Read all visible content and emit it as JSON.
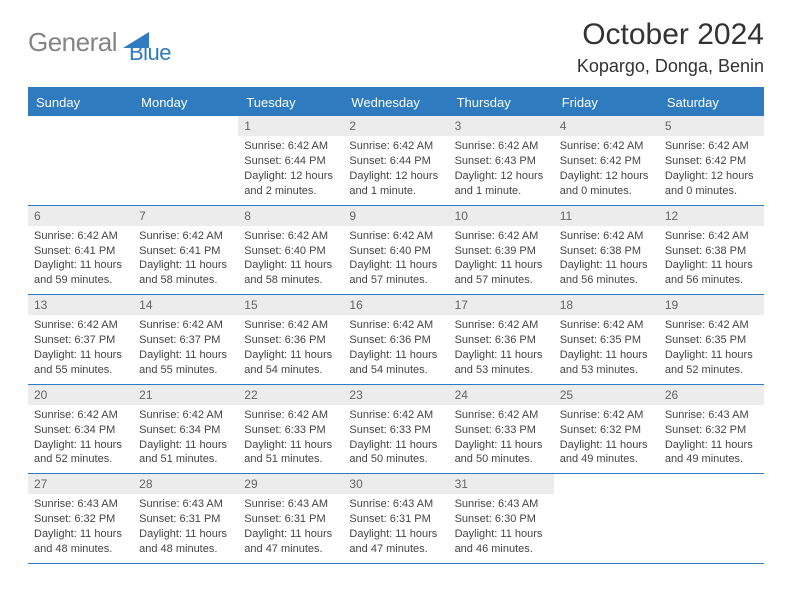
{
  "brand": {
    "text_gray": "General",
    "text_blue": "Blue",
    "shape_color": "#2f7bbf"
  },
  "title": "October 2024",
  "location": "Kopargo, Donga, Benin",
  "colors": {
    "header_bg": "#2f7bbf",
    "daynum_bg": "#ececec",
    "border": "#2f7bbf",
    "text": "#333333",
    "muted": "#666666"
  },
  "weekdays": [
    "Sunday",
    "Monday",
    "Tuesday",
    "Wednesday",
    "Thursday",
    "Friday",
    "Saturday"
  ],
  "weeks": [
    [
      {
        "empty": true
      },
      {
        "empty": true
      },
      {
        "num": "1",
        "sunrise": "Sunrise: 6:42 AM",
        "sunset": "Sunset: 6:44 PM",
        "daylight": "Daylight: 12 hours and 2 minutes."
      },
      {
        "num": "2",
        "sunrise": "Sunrise: 6:42 AM",
        "sunset": "Sunset: 6:44 PM",
        "daylight": "Daylight: 12 hours and 1 minute."
      },
      {
        "num": "3",
        "sunrise": "Sunrise: 6:42 AM",
        "sunset": "Sunset: 6:43 PM",
        "daylight": "Daylight: 12 hours and 1 minute."
      },
      {
        "num": "4",
        "sunrise": "Sunrise: 6:42 AM",
        "sunset": "Sunset: 6:42 PM",
        "daylight": "Daylight: 12 hours and 0 minutes."
      },
      {
        "num": "5",
        "sunrise": "Sunrise: 6:42 AM",
        "sunset": "Sunset: 6:42 PM",
        "daylight": "Daylight: 12 hours and 0 minutes."
      }
    ],
    [
      {
        "num": "6",
        "sunrise": "Sunrise: 6:42 AM",
        "sunset": "Sunset: 6:41 PM",
        "daylight": "Daylight: 11 hours and 59 minutes."
      },
      {
        "num": "7",
        "sunrise": "Sunrise: 6:42 AM",
        "sunset": "Sunset: 6:41 PM",
        "daylight": "Daylight: 11 hours and 58 minutes."
      },
      {
        "num": "8",
        "sunrise": "Sunrise: 6:42 AM",
        "sunset": "Sunset: 6:40 PM",
        "daylight": "Daylight: 11 hours and 58 minutes."
      },
      {
        "num": "9",
        "sunrise": "Sunrise: 6:42 AM",
        "sunset": "Sunset: 6:40 PM",
        "daylight": "Daylight: 11 hours and 57 minutes."
      },
      {
        "num": "10",
        "sunrise": "Sunrise: 6:42 AM",
        "sunset": "Sunset: 6:39 PM",
        "daylight": "Daylight: 11 hours and 57 minutes."
      },
      {
        "num": "11",
        "sunrise": "Sunrise: 6:42 AM",
        "sunset": "Sunset: 6:38 PM",
        "daylight": "Daylight: 11 hours and 56 minutes."
      },
      {
        "num": "12",
        "sunrise": "Sunrise: 6:42 AM",
        "sunset": "Sunset: 6:38 PM",
        "daylight": "Daylight: 11 hours and 56 minutes."
      }
    ],
    [
      {
        "num": "13",
        "sunrise": "Sunrise: 6:42 AM",
        "sunset": "Sunset: 6:37 PM",
        "daylight": "Daylight: 11 hours and 55 minutes."
      },
      {
        "num": "14",
        "sunrise": "Sunrise: 6:42 AM",
        "sunset": "Sunset: 6:37 PM",
        "daylight": "Daylight: 11 hours and 55 minutes."
      },
      {
        "num": "15",
        "sunrise": "Sunrise: 6:42 AM",
        "sunset": "Sunset: 6:36 PM",
        "daylight": "Daylight: 11 hours and 54 minutes."
      },
      {
        "num": "16",
        "sunrise": "Sunrise: 6:42 AM",
        "sunset": "Sunset: 6:36 PM",
        "daylight": "Daylight: 11 hours and 54 minutes."
      },
      {
        "num": "17",
        "sunrise": "Sunrise: 6:42 AM",
        "sunset": "Sunset: 6:36 PM",
        "daylight": "Daylight: 11 hours and 53 minutes."
      },
      {
        "num": "18",
        "sunrise": "Sunrise: 6:42 AM",
        "sunset": "Sunset: 6:35 PM",
        "daylight": "Daylight: 11 hours and 53 minutes."
      },
      {
        "num": "19",
        "sunrise": "Sunrise: 6:42 AM",
        "sunset": "Sunset: 6:35 PM",
        "daylight": "Daylight: 11 hours and 52 minutes."
      }
    ],
    [
      {
        "num": "20",
        "sunrise": "Sunrise: 6:42 AM",
        "sunset": "Sunset: 6:34 PM",
        "daylight": "Daylight: 11 hours and 52 minutes."
      },
      {
        "num": "21",
        "sunrise": "Sunrise: 6:42 AM",
        "sunset": "Sunset: 6:34 PM",
        "daylight": "Daylight: 11 hours and 51 minutes."
      },
      {
        "num": "22",
        "sunrise": "Sunrise: 6:42 AM",
        "sunset": "Sunset: 6:33 PM",
        "daylight": "Daylight: 11 hours and 51 minutes."
      },
      {
        "num": "23",
        "sunrise": "Sunrise: 6:42 AM",
        "sunset": "Sunset: 6:33 PM",
        "daylight": "Daylight: 11 hours and 50 minutes."
      },
      {
        "num": "24",
        "sunrise": "Sunrise: 6:42 AM",
        "sunset": "Sunset: 6:33 PM",
        "daylight": "Daylight: 11 hours and 50 minutes."
      },
      {
        "num": "25",
        "sunrise": "Sunrise: 6:42 AM",
        "sunset": "Sunset: 6:32 PM",
        "daylight": "Daylight: 11 hours and 49 minutes."
      },
      {
        "num": "26",
        "sunrise": "Sunrise: 6:43 AM",
        "sunset": "Sunset: 6:32 PM",
        "daylight": "Daylight: 11 hours and 49 minutes."
      }
    ],
    [
      {
        "num": "27",
        "sunrise": "Sunrise: 6:43 AM",
        "sunset": "Sunset: 6:32 PM",
        "daylight": "Daylight: 11 hours and 48 minutes."
      },
      {
        "num": "28",
        "sunrise": "Sunrise: 6:43 AM",
        "sunset": "Sunset: 6:31 PM",
        "daylight": "Daylight: 11 hours and 48 minutes."
      },
      {
        "num": "29",
        "sunrise": "Sunrise: 6:43 AM",
        "sunset": "Sunset: 6:31 PM",
        "daylight": "Daylight: 11 hours and 47 minutes."
      },
      {
        "num": "30",
        "sunrise": "Sunrise: 6:43 AM",
        "sunset": "Sunset: 6:31 PM",
        "daylight": "Daylight: 11 hours and 47 minutes."
      },
      {
        "num": "31",
        "sunrise": "Sunrise: 6:43 AM",
        "sunset": "Sunset: 6:30 PM",
        "daylight": "Daylight: 11 hours and 46 minutes."
      },
      {
        "empty": true
      },
      {
        "empty": true
      }
    ]
  ]
}
